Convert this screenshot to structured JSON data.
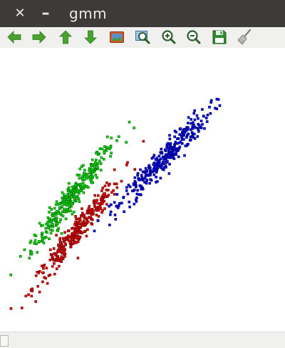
{
  "window": {
    "title": "gmm",
    "close_glyph": "✕",
    "minimize_glyph": "–"
  },
  "toolbar": {
    "tools": [
      {
        "name": "back-icon",
        "color": "#3fa02b"
      },
      {
        "name": "forward-icon",
        "color": "#3fa02b"
      },
      {
        "name": "up-icon",
        "color": "#3fa02b"
      },
      {
        "name": "down-icon",
        "color": "#3fa02b"
      },
      {
        "name": "fit-view-icon",
        "color": "#d35d24"
      },
      {
        "name": "zoom-box-icon",
        "color": "#2f6b3c"
      },
      {
        "name": "zoom-in-icon",
        "color": "#2f6b3c"
      },
      {
        "name": "zoom-out-icon",
        "color": "#2f6b3c"
      },
      {
        "name": "save-icon",
        "color": "#2d8a2d"
      },
      {
        "name": "clear-icon",
        "color": "#8b8b8b"
      }
    ]
  },
  "chart_data": {
    "type": "scatter",
    "title": "",
    "xlabel": "",
    "ylabel": "",
    "grid": false,
    "xlim": [
      0,
      400
    ],
    "ylim": [
      0,
      400
    ],
    "series": [
      {
        "color": "#00e000",
        "count": 320,
        "center": [
          100,
          190
        ],
        "major_std": 48,
        "minor_std": 6,
        "angle_deg": 53
      },
      {
        "color": "#ee0000",
        "count": 320,
        "center": [
          108,
          141
        ],
        "major_std": 50,
        "minor_std": 6,
        "angle_deg": 52
      },
      {
        "color": "#0000ee",
        "count": 320,
        "center": [
          229,
          243
        ],
        "major_std": 48,
        "minor_std": 7,
        "angle_deg": 47
      }
    ]
  },
  "statusbar": {}
}
